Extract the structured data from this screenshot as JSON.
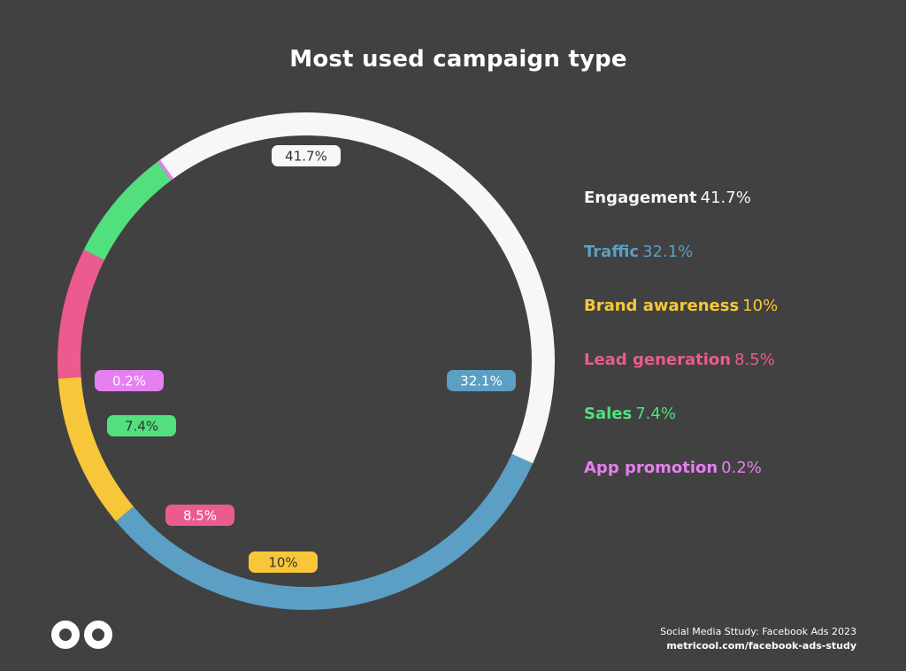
{
  "chart_data": {
    "type": "pie",
    "title": "Most used campaign type",
    "style": "donut",
    "categories": [
      "Engagement",
      "Traffic",
      "Brand awareness",
      "Lead generation",
      "Sales",
      "App promotion"
    ],
    "values": [
      41.7,
      32.1,
      10,
      8.5,
      7.4,
      0.2
    ],
    "value_labels": [
      "41.7%",
      "32.1%",
      "10%",
      "8.5%",
      "7.4%",
      "0.2%"
    ],
    "colors": [
      "#f7f7f7",
      "#5b9fc4",
      "#f7c739",
      "#ec5b8f",
      "#52e07f",
      "#e57ff2"
    ],
    "label_text_colors": [
      "#333333",
      "#ffffff",
      "#333333",
      "#ffffff",
      "#333333",
      "#ffffff"
    ],
    "legend_position": "right"
  },
  "source": {
    "line1": "Social Media Sttudy: Facebook Ads 2023",
    "line2": "metricool.com/facebook-ads-study"
  },
  "logo": {
    "icon": "metricool-infinity-icon"
  }
}
